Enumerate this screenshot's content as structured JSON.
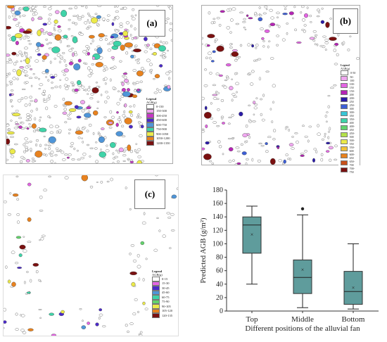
{
  "panels": [
    {
      "label": "(a)",
      "legend_title": "Legend",
      "legend_sub": "AGB(g)",
      "legend_items": [
        {
          "label": "0-150",
          "color": "#ffffff"
        },
        {
          "label": "150-300",
          "color": "#f0a7f0"
        },
        {
          "label": "300-450",
          "color": "#c535c5"
        },
        {
          "label": "450-600",
          "color": "#4b2bc8"
        },
        {
          "label": "600-750",
          "color": "#4f95d8"
        },
        {
          "label": "750-900",
          "color": "#3fd3a8"
        },
        {
          "label": "900-1050",
          "color": "#ecea4a"
        },
        {
          "label": "1050-1200",
          "color": "#e8821e"
        },
        {
          "label": "1200-1350",
          "color": "#7a1010"
        }
      ]
    },
    {
      "label": "(b)",
      "legend_title": "Legend",
      "legend_sub": "AGB(g)",
      "legend_items": [
        {
          "label": "0-50",
          "color": "#ffffff"
        },
        {
          "label": "50-100",
          "color": "#f0a7f0"
        },
        {
          "label": "100-150",
          "color": "#e365e3"
        },
        {
          "label": "150-200",
          "color": "#b524b5"
        },
        {
          "label": "200-250",
          "color": "#2a1ba8"
        },
        {
          "label": "250-300",
          "color": "#3d5fd6"
        },
        {
          "label": "300-350",
          "color": "#39c6d6"
        },
        {
          "label": "350-400",
          "color": "#3fd3a8"
        },
        {
          "label": "400-450",
          "color": "#63d36c"
        },
        {
          "label": "450-500",
          "color": "#b4e14a"
        },
        {
          "label": "500-550",
          "color": "#ecea4a"
        },
        {
          "label": "550-600",
          "color": "#f2c23a"
        },
        {
          "label": "600-650",
          "color": "#e8821e"
        },
        {
          "label": "650-700",
          "color": "#c8501a"
        },
        {
          "label": "700-750",
          "color": "#7a1010"
        }
      ]
    },
    {
      "label": "(c)",
      "legend_title": "Legend",
      "legend_sub": "AGB(g)",
      "legend_items": [
        {
          "label": "0-15",
          "color": "#ffffff"
        },
        {
          "label": "15-30",
          "color": "#e365e3"
        },
        {
          "label": "30-45",
          "color": "#4b2bc8"
        },
        {
          "label": "45-60",
          "color": "#4f95d8"
        },
        {
          "label": "60-75",
          "color": "#3fd3a8"
        },
        {
          "label": "75-90",
          "color": "#63d36c"
        },
        {
          "label": "90-105",
          "color": "#ecea4a"
        },
        {
          "label": "105-120",
          "color": "#e8821e"
        },
        {
          "label": "120-135",
          "color": "#7a1010"
        }
      ]
    }
  ],
  "chart_data": {
    "type": "box",
    "ylabel": "Predicted AGB (g/m²)",
    "xlabel": "Different positions of the alluvial fan",
    "ylim": [
      0,
      180
    ],
    "yticks": [
      0,
      20,
      40,
      60,
      80,
      100,
      120,
      140,
      160,
      180
    ],
    "categories": [
      "Top",
      "Middle",
      "Bottom"
    ],
    "boxes": [
      {
        "min": 40,
        "q1": 86,
        "median": 128,
        "q3": 140,
        "max": 156,
        "mean": 114,
        "outliers": []
      },
      {
        "min": 5,
        "q1": 26,
        "median": 50,
        "q3": 76,
        "max": 143,
        "mean": 62,
        "outliers": [
          152
        ]
      },
      {
        "min": 3,
        "q1": 10,
        "median": 29,
        "q3": 59,
        "max": 100,
        "mean": 35,
        "outliers": []
      }
    ],
    "box_color": "#5f9c9c"
  }
}
